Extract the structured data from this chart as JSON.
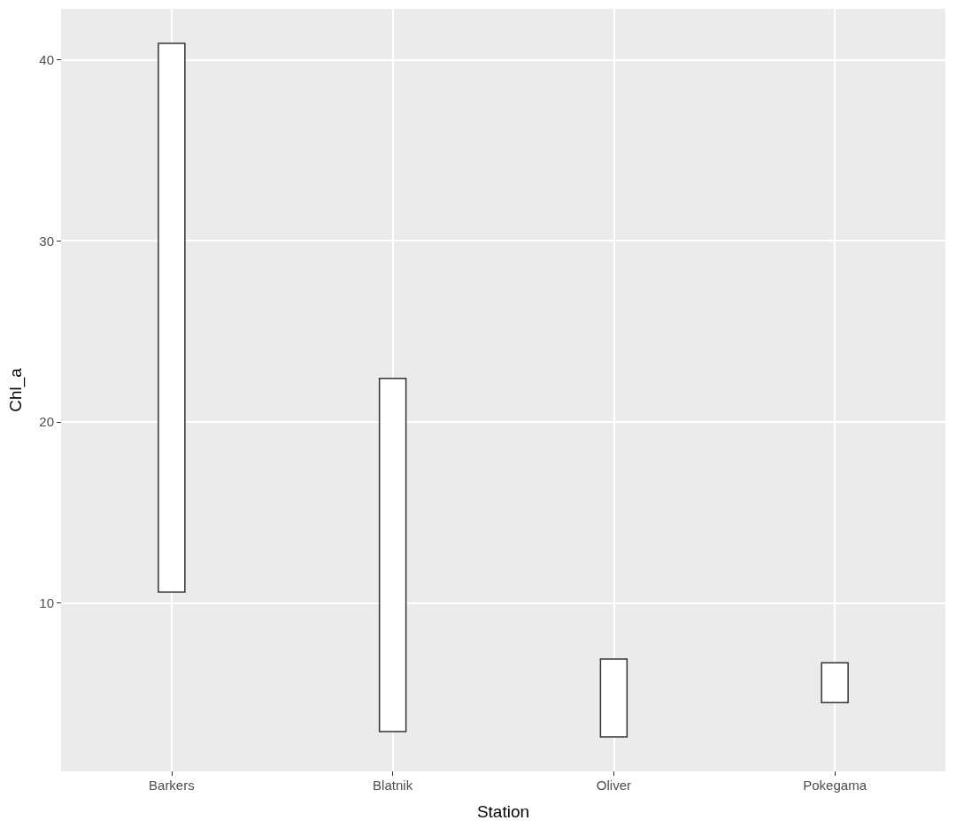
{
  "chart_data": {
    "type": "bar",
    "xlabel": "Station",
    "ylabel": "Chl_a",
    "categories": [
      "Barkers",
      "Blatnik",
      "Oliver",
      "Pokegama"
    ],
    "base": [
      10.6,
      2.9,
      2.6,
      4.5
    ],
    "values": [
      30.3,
      19.5,
      4.3,
      2.2
    ],
    "color": "#ffffff",
    "ylim": [
      0.7,
      42.8
    ],
    "yticks": [
      10,
      20,
      30,
      40
    ],
    "grid": true
  }
}
